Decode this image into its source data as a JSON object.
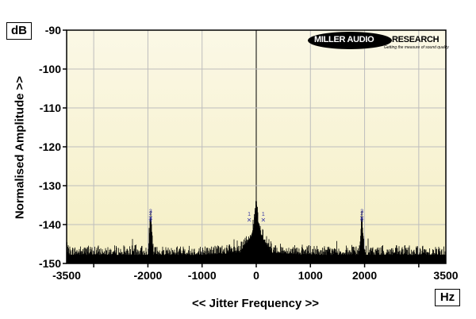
{
  "chart_data": {
    "type": "line",
    "title": "",
    "xlabel": "<< Jitter Frequency >>",
    "ylabel": "Normalised Amplitude >>",
    "x_unit": "Hz",
    "y_unit": "dB",
    "xlim": [
      -3500,
      3500
    ],
    "ylim": [
      -150,
      -90
    ],
    "xticks": [
      -3500,
      -2000,
      -1000,
      0,
      1000,
      2000,
      3500
    ],
    "xtick_labels": [
      "-3500",
      "-2000",
      "-1000",
      "0",
      "1000",
      "2000",
      "3500"
    ],
    "xgrid": [
      -3000,
      -2000,
      -1000,
      0,
      1000,
      2000,
      3000
    ],
    "yticks": [
      -90,
      -100,
      -110,
      -120,
      -130,
      -140,
      -150
    ],
    "ytick_labels": [
      "-90",
      "-100",
      "-110",
      "-120",
      "-130",
      "-140",
      "-150"
    ],
    "grid": true,
    "noise_floor": -147.5,
    "series": [
      {
        "values": [
          {
            "x": -3500,
            "y": -147.5
          },
          {
            "x": -2000,
            "y": -147.5
          },
          {
            "x": -1950,
            "y": -138.2
          },
          {
            "x": -1900,
            "y": -147.5
          },
          {
            "x": -1000,
            "y": -147.5
          },
          {
            "x": -300,
            "y": -147.0
          },
          {
            "x": -100,
            "y": -143.0
          },
          {
            "x": -40,
            "y": -140.0
          },
          {
            "x": 0,
            "y": -134.0
          },
          {
            "x": 40,
            "y": -140.0
          },
          {
            "x": 100,
            "y": -143.0
          },
          {
            "x": 300,
            "y": -147.0
          },
          {
            "x": 1000,
            "y": -147.5
          },
          {
            "x": 1900,
            "y": -147.5
          },
          {
            "x": 1950,
            "y": -138.2
          },
          {
            "x": 2000,
            "y": -147.5
          },
          {
            "x": 3500,
            "y": -147.5
          }
        ]
      }
    ],
    "markers": [
      {
        "label": "1",
        "x": -130,
        "y": -137.8
      },
      {
        "label": "1",
        "x": 130,
        "y": -137.8
      },
      {
        "label": "3",
        "x": -1950,
        "y": -137.0
      },
      {
        "label": "2",
        "x": -1950,
        "y": -137.6
      },
      {
        "label": "4",
        "x": -1950,
        "y": -139.3
      },
      {
        "label": "3",
        "x": 1950,
        "y": -137.0
      },
      {
        "label": "2",
        "x": 1950,
        "y": -137.6
      },
      {
        "label": "4",
        "x": 1950,
        "y": -139.3
      }
    ],
    "colors": {
      "background_top": "#fbf8e6",
      "background_bottom": "#f5efc4",
      "grid": "#bdbdbd",
      "trace": "#000000",
      "marker": "#3a3aa6"
    }
  },
  "logo": {
    "brand_white": "MILLER AUDIO",
    "brand_black": "RESEARCH",
    "tagline": "Getting the measure of sound quality"
  }
}
